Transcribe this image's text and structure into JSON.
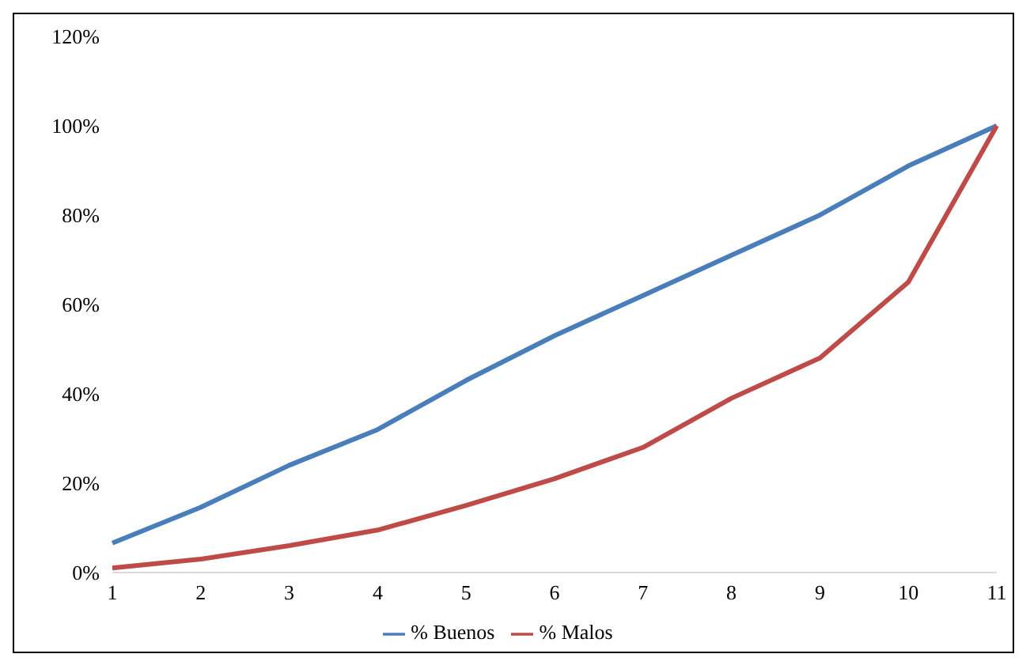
{
  "chart_data": {
    "type": "line",
    "categories": [
      "1",
      "2",
      "3",
      "4",
      "5",
      "6",
      "7",
      "8",
      "9",
      "10",
      "11"
    ],
    "series": [
      {
        "name": "% Buenos",
        "color": "#4a7ebb",
        "values": [
          6.6,
          14.6,
          24,
          32,
          43,
          53,
          62,
          71,
          80,
          91,
          100
        ]
      },
      {
        "name": "% Malos",
        "color": "#be4b48",
        "values": [
          1,
          3,
          6,
          9.5,
          15,
          21,
          28,
          39,
          48,
          65,
          100
        ]
      }
    ],
    "ylim": [
      0,
      120
    ],
    "yticks": [
      {
        "value": 0,
        "label": "0%"
      },
      {
        "value": 20,
        "label": "20%"
      },
      {
        "value": 40,
        "label": "40%"
      },
      {
        "value": 60,
        "label": "60%"
      },
      {
        "value": 80,
        "label": "80%"
      },
      {
        "value": 100,
        "label": "100%"
      },
      {
        "value": 120,
        "label": "120%"
      }
    ],
    "grid": false,
    "legend": "bottom",
    "marker": "none",
    "line_style": "solid"
  }
}
